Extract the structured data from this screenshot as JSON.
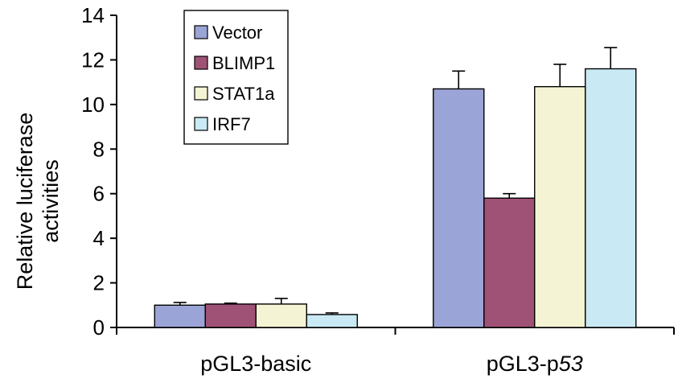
{
  "chart_data": {
    "type": "bar",
    "title": "",
    "xlabel": "",
    "ylabel_lines": [
      "Relative luciferase",
      "activities"
    ],
    "ylim": [
      0,
      14
    ],
    "yticks": [
      0,
      2,
      4,
      6,
      8,
      10,
      12,
      14
    ],
    "categories": [
      "pGL3-basic",
      "pGL3-p53"
    ],
    "category_labels": [
      {
        "text": "pGL3-basic",
        "suffix": ""
      },
      {
        "text": "pGL3-p",
        "suffix": "53",
        "suffix_italic": true
      }
    ],
    "series": [
      {
        "name": "Vector",
        "color": "#9aa4d6",
        "values": [
          1.0,
          10.7
        ],
        "errors": [
          0.12,
          0.8
        ]
      },
      {
        "name": "BLIMP1",
        "color": "#a05276",
        "values": [
          1.05,
          5.8
        ],
        "errors": [
          0.04,
          0.2
        ]
      },
      {
        "name": "STAT1a",
        "color": "#f4f3d3",
        "values": [
          1.05,
          10.8
        ],
        "errors": [
          0.25,
          1.0
        ]
      },
      {
        "name": "IRF7",
        "color": "#c9e9f4",
        "values": [
          0.58,
          11.6
        ],
        "errors": [
          0.07,
          0.95
        ]
      }
    ],
    "legend_position": "top-left",
    "grid": false
  }
}
